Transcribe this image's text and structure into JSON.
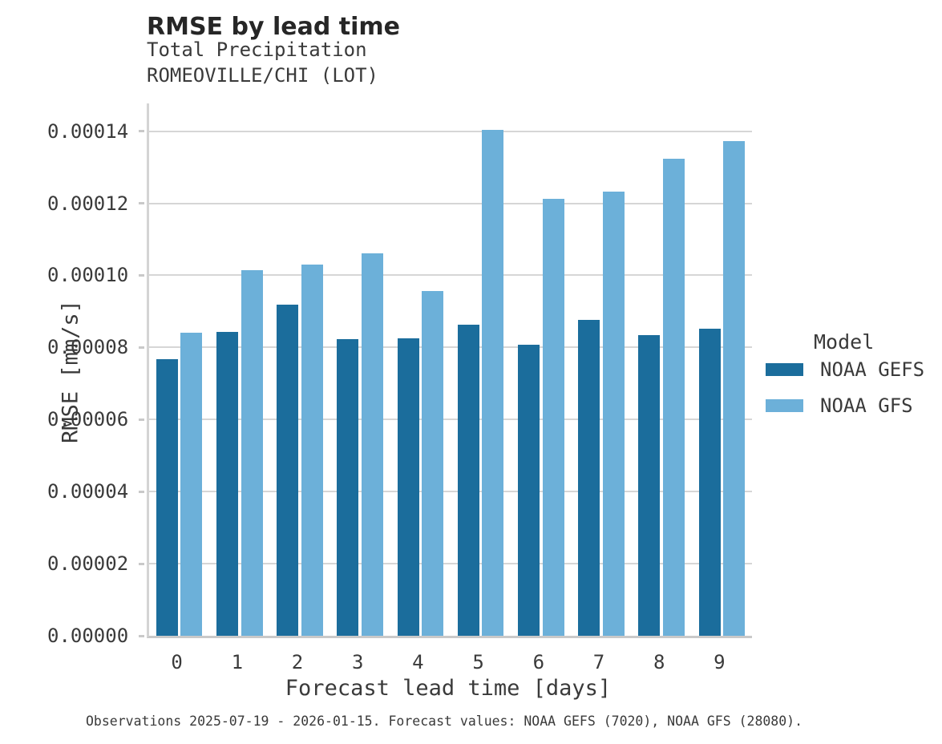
{
  "figure": {
    "caption": "Observations 2025-07-19 - 2026-01-15. Forecast values: NOAA GEFS (7020), NOAA GFS (28080)."
  },
  "colors": {
    "gefs_dark_blue": "#1b6d9c",
    "gfs_light_blue": "#6cb0d9",
    "gridline_gray": "#d6d6d6",
    "axis_gray": "#c9c9c9",
    "text_dark": "#3a3a3a"
  },
  "chart_data": {
    "type": "bar",
    "title": "RMSE by lead time",
    "subtitle": [
      "Total Precipitation",
      "ROMEOVILLE/CHI (LOT)"
    ],
    "xlabel": "Forecast lead time [days]",
    "ylabel": "RMSE [mm/s]",
    "categories": [
      "0",
      "1",
      "2",
      "3",
      "4",
      "5",
      "6",
      "7",
      "8",
      "9"
    ],
    "series": [
      {
        "name": "NOAA GEFS",
        "color": "#1b6d9c",
        "values": [
          7.68e-05,
          8.43e-05,
          9.19e-05,
          8.22e-05,
          8.25e-05,
          8.64e-05,
          8.07e-05,
          8.77e-05,
          8.34e-05,
          8.53e-05
        ]
      },
      {
        "name": "NOAA GFS",
        "color": "#6cb0d9",
        "values": [
          8.4e-05,
          0.0001014,
          0.0001031,
          0.0001061,
          9.56e-05,
          0.0001403,
          0.0001213,
          0.0001233,
          0.0001323,
          0.0001372
        ]
      }
    ],
    "ylim": [
      0,
      0.0001477
    ],
    "yticks": [
      0,
      2e-05,
      4e-05,
      6e-05,
      8e-05,
      0.0001,
      0.00012,
      0.00014
    ],
    "ytick_labels": [
      "0.00000",
      "0.00002",
      "0.00004",
      "0.00006",
      "0.00008",
      "0.00010",
      "0.00012",
      "0.00014"
    ],
    "grid": "horizontal",
    "legend": {
      "title": "Model",
      "position": "right"
    },
    "caption": "Observations 2025-07-19 - 2026-01-15. Forecast values: NOAA GEFS (7020), NOAA GFS (28080)."
  }
}
